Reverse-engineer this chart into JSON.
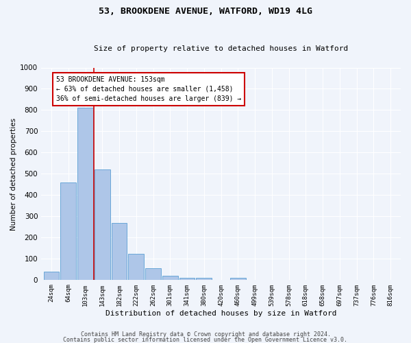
{
  "title1": "53, BROOKDENE AVENUE, WATFORD, WD19 4LG",
  "title2": "Size of property relative to detached houses in Watford",
  "xlabel": "Distribution of detached houses by size in Watford",
  "ylabel": "Number of detached properties",
  "categories": [
    "24sqm",
    "64sqm",
    "103sqm",
    "143sqm",
    "182sqm",
    "222sqm",
    "262sqm",
    "301sqm",
    "341sqm",
    "380sqm",
    "420sqm",
    "460sqm",
    "499sqm",
    "539sqm",
    "578sqm",
    "618sqm",
    "658sqm",
    "697sqm",
    "737sqm",
    "776sqm",
    "816sqm"
  ],
  "values": [
    40,
    460,
    810,
    520,
    270,
    125,
    55,
    22,
    10,
    10,
    0,
    10,
    0,
    0,
    0,
    0,
    0,
    0,
    0,
    0,
    0
  ],
  "bar_color": "#aec6e8",
  "bar_edge_color": "#5a9fd4",
  "vline_color": "#cc0000",
  "vline_x": 2.5,
  "ylim": [
    0,
    1000
  ],
  "yticks": [
    0,
    100,
    200,
    300,
    400,
    500,
    600,
    700,
    800,
    900,
    1000
  ],
  "annotation_text": "53 BROOKDENE AVENUE: 153sqm\n← 63% of detached houses are smaller (1,458)\n36% of semi-detached houses are larger (839) →",
  "annotation_box_color": "#ffffff",
  "annotation_box_edge": "#cc0000",
  "bg_color": "#f0f4fb",
  "fig_bg_color": "#f0f4fb",
  "grid_color": "#ffffff",
  "footer1": "Contains HM Land Registry data © Crown copyright and database right 2024.",
  "footer2": "Contains public sector information licensed under the Open Government Licence v3.0."
}
